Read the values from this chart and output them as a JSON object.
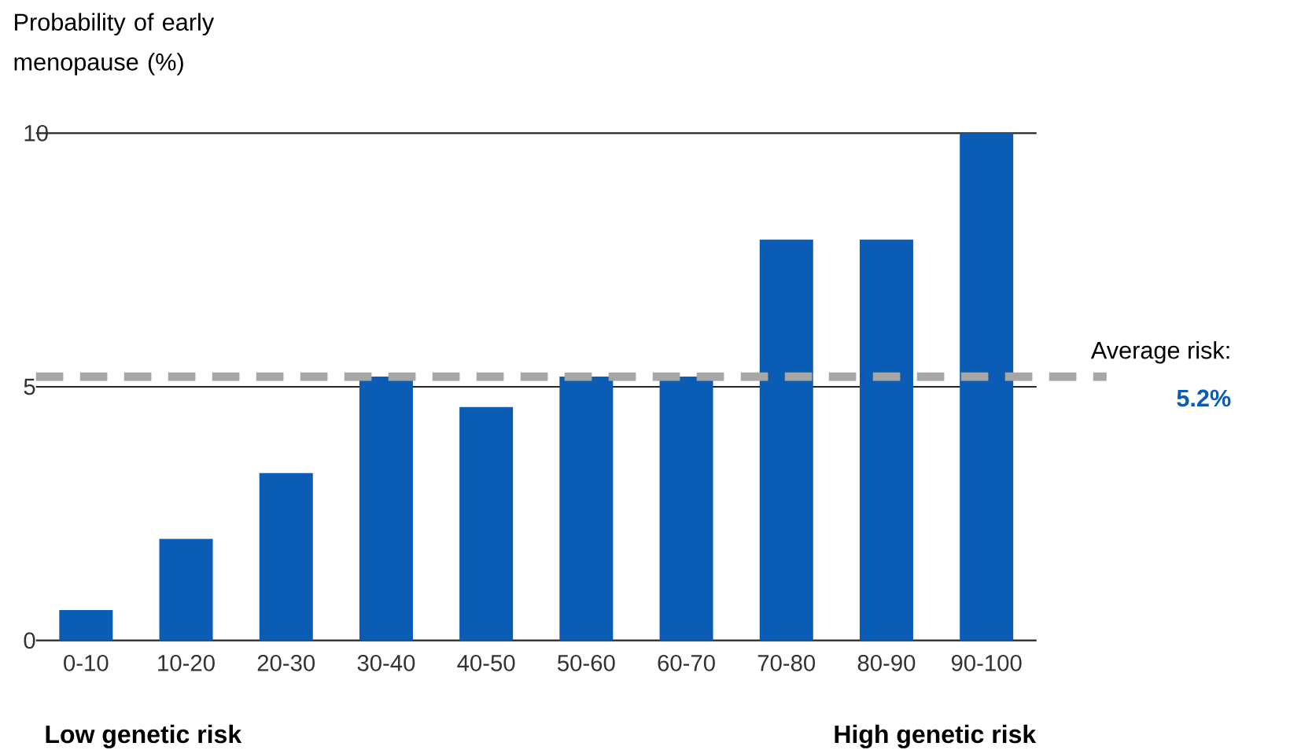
{
  "chart_data": {
    "type": "bar",
    "ylabel": "Probability of early menopause (%)",
    "categories": [
      "0-10",
      "10-20",
      "20-30",
      "30-40",
      "40-50",
      "50-60",
      "60-70",
      "70-80",
      "80-90",
      "90-100"
    ],
    "values": [
      0.6,
      2.0,
      3.3,
      5.2,
      4.6,
      5.2,
      5.2,
      7.9,
      7.9,
      10.0
    ],
    "color": "#0b5cb5",
    "ylim": [
      0,
      10
    ],
    "yticks": [
      0,
      5,
      10
    ],
    "grid": "y",
    "ref_lines": [
      {
        "axis": "y",
        "value": 5.2,
        "label": "Average risk:",
        "color": "#a6a6a6",
        "line_style": "dashed"
      }
    ],
    "annotations": [
      "Low genetic risk",
      "High genetic risk",
      "5.2%"
    ]
  }
}
